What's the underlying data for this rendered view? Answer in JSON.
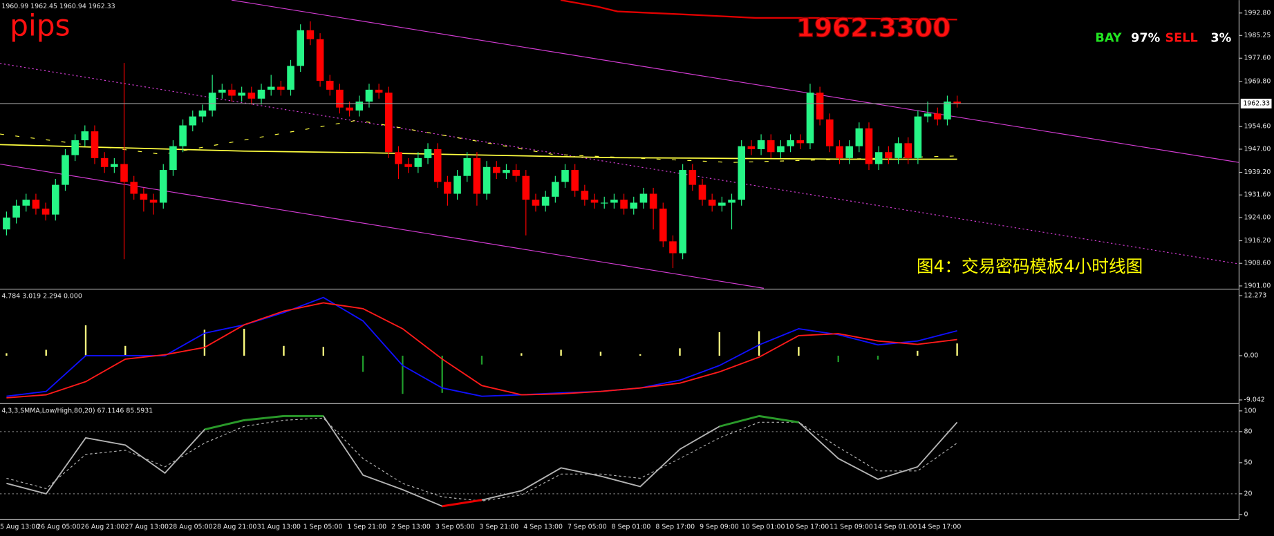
{
  "chart_data": [
    {
      "type": "candlestick",
      "header": "1960.99 1962.45 1960.94 1962.33",
      "annotations": [
        "pips",
        "1962.3300",
        "图4：交易密码模板4小时线图"
      ],
      "signal": {
        "labels": [
          "BAY",
          "SELL"
        ],
        "values": [
          97,
          3
        ],
        "value_labels": [
          "97%",
          "3%"
        ]
      },
      "last": {
        "value": 1962.33,
        "label": "1962.33"
      },
      "up_color": "#26f586",
      "down_color": "#ff0000",
      "ylim": [
        1900.2,
        1996.6
      ],
      "yticks": [
        {
          "value": 1992.8,
          "label": "1992.80"
        },
        1985.25,
        {
          "value": 1977.6,
          "label": "1977.60"
        },
        {
          "value": 1969.8,
          "label": "1969.80"
        },
        {
          "value": 1954.6,
          "label": "1954.60"
        },
        {
          "value": 1947,
          "label": "1947.00"
        },
        {
          "value": 1939.2,
          "label": "1939.20"
        },
        {
          "value": 1931.6,
          "label": "1931.60"
        },
        {
          "value": 1924,
          "label": "1924.00"
        },
        {
          "value": 1916.2,
          "label": "1916.20"
        },
        {
          "value": 1908.6,
          "label": "1908.60"
        },
        {
          "value": 1901,
          "label": "1901.00"
        }
      ],
      "x_labels": [
        "5 Aug 13:00",
        "26 Aug 05:00",
        "26 Aug 21:00",
        "27 Aug 13:00",
        "28 Aug 05:00",
        "28 Aug 21:00",
        "31 Aug 13:00",
        "1 Sep 05:00",
        "1 Sep 21:00",
        "2 Sep 13:00",
        "3 Sep 05:00",
        "3 Sep 21:00",
        "4 Sep 13:00",
        "7 Sep 05:00",
        "8 Sep 01:00",
        "8 Sep 17:00",
        "9 Sep 09:00",
        "10 Sep 01:00",
        "10 Sep 17:00",
        "11 Sep 09:00",
        "14 Sep 01:00",
        "14 Sep 17:00"
      ],
      "open": [
        1920,
        1924,
        1928,
        1930,
        1927,
        1925,
        1935,
        1945,
        1950,
        1953,
        1944,
        1941,
        1942,
        1936,
        1932,
        1930,
        1929,
        1940,
        1948,
        1955,
        1958,
        1960,
        1966,
        1967,
        1965,
        1966,
        1964,
        1967,
        1968,
        1967,
        1975,
        1987,
        1984,
        1970,
        1967,
        1961,
        1960,
        1963,
        1967,
        1966,
        1946,
        1942,
        1941,
        1944,
        1947,
        1936,
        1932,
        1938,
        1944,
        1932,
        1941,
        1939,
        1940,
        1938,
        1930,
        1928,
        1931,
        1936,
        1940,
        1933,
        1930,
        1929,
        1929,
        1930,
        1927,
        1929,
        1932,
        1927,
        1916,
        1912,
        1940,
        1935,
        1930,
        1928,
        1929,
        1930,
        1948,
        1947,
        1950,
        1946,
        1948,
        1950,
        1949,
        1966,
        1957,
        1948,
        1944,
        1948,
        1954,
        1942,
        1946,
        1944,
        1949,
        1944,
        1958,
        1959,
        1957,
        1963
      ],
      "high": [
        1926,
        1930,
        1932,
        1932,
        1929,
        1937,
        1947,
        1952,
        1955,
        1955,
        1946,
        1944,
        1976,
        1938,
        1934,
        1932,
        1942,
        1950,
        1957,
        1960,
        1962,
        1972,
        1969,
        1969,
        1968,
        1968,
        1969,
        1972,
        1970,
        1977,
        1989,
        1990,
        1986,
        1972,
        1969,
        1963,
        1965,
        1969,
        1969,
        1968,
        1948,
        1944,
        1946,
        1949,
        1949,
        1938,
        1940,
        1946,
        1946,
        1943,
        1943,
        1942,
        1942,
        1940,
        1932,
        1933,
        1938,
        1942,
        1942,
        1935,
        1932,
        1931,
        1932,
        1932,
        1931,
        1934,
        1934,
        1929,
        1918,
        1942,
        1942,
        1937,
        1932,
        1931,
        1932,
        1950,
        1950,
        1952,
        1952,
        1950,
        1952,
        1952,
        1969,
        1968,
        1959,
        1950,
        1950,
        1956,
        1956,
        1948,
        1948,
        1951,
        1951,
        1960,
        1963,
        1961,
        1965,
        1965
      ],
      "low": [
        1918,
        1922,
        1926,
        1925,
        1923,
        1923,
        1933,
        1943,
        1948,
        1942,
        1939,
        1939,
        1910,
        1930,
        1926,
        1925,
        1927,
        1938,
        1946,
        1953,
        1956,
        1958,
        1964,
        1963,
        1963,
        1962,
        1962,
        1965,
        1965,
        1965,
        1973,
        1982,
        1968,
        1965,
        1959,
        1958,
        1958,
        1961,
        1964,
        1944,
        1937,
        1939,
        1939,
        1942,
        1934,
        1928,
        1930,
        1936,
        1928,
        1930,
        1937,
        1937,
        1936,
        1918,
        1926,
        1926,
        1929,
        1934,
        1931,
        1928,
        1927,
        1927,
        1927,
        1925,
        1925,
        1927,
        1920,
        1914,
        1907,
        1910,
        1933,
        1928,
        1926,
        1926,
        1920,
        1928,
        1945,
        1945,
        1944,
        1944,
        1946,
        1947,
        1947,
        1955,
        1946,
        1942,
        1942,
        1946,
        1940,
        1940,
        1942,
        1942,
        1942,
        1942,
        1956,
        1955,
        1955,
        1961
      ],
      "close": [
        1924,
        1928,
        1930,
        1927,
        1925,
        1935,
        1945,
        1950,
        1953,
        1944,
        1941,
        1942,
        1936,
        1932,
        1930,
        1929,
        1940,
        1948,
        1955,
        1958,
        1960,
        1966,
        1967,
        1965,
        1966,
        1964,
        1967,
        1968,
        1967,
        1975,
        1987,
        1984,
        1970,
        1967,
        1961,
        1960,
        1963,
        1967,
        1966,
        1946,
        1942,
        1941,
        1944,
        1947,
        1936,
        1932,
        1938,
        1944,
        1932,
        1941,
        1939,
        1940,
        1938,
        1930,
        1928,
        1931,
        1936,
        1940,
        1933,
        1930,
        1929,
        1929,
        1930,
        1927,
        1929,
        1932,
        1927,
        1916,
        1912,
        1940,
        1935,
        1930,
        1928,
        1929,
        1930,
        1948,
        1947,
        1950,
        1946,
        1948,
        1950,
        1949,
        1966,
        1957,
        1948,
        1944,
        1948,
        1954,
        1942,
        1946,
        1944,
        1949,
        1944,
        1958,
        1959,
        1957,
        1963,
        1962.33
      ]
    },
    {
      "type": "macd",
      "header": "4.784 3.019 2.294 0.000",
      "ylim": [
        -9.62,
        13.27
      ],
      "yticks": [
        12.273,
        {
          "value": 0,
          "label": "0.00"
        },
        -9.042
      ],
      "histogram": {
        "values": [
          0.5,
          1.2,
          6.2,
          2,
          0.3,
          5.3,
          5.5,
          2,
          1.8,
          -3.3,
          -7.8,
          -7.6,
          -1.8,
          0.5,
          1.2,
          0.8,
          0.3,
          1.5,
          4.8,
          5,
          1.8,
          -1.3,
          -0.8,
          1,
          2.5
        ],
        "color": "#ffff80",
        "negative_color": "#1f9a2a"
      },
      "series": [
        {
          "color": "#1010ff",
          "values": [
            -8.3,
            -7.3,
            0,
            0,
            0,
            4.6,
            6.3,
            8.8,
            11.9,
            7.1,
            -2,
            -6.6,
            -8.3,
            -8,
            -7.6,
            -7.3,
            -6.6,
            -5,
            -2,
            2.2,
            5.5,
            4.3,
            2.2,
            3,
            5.1
          ]
        },
        {
          "color": "#ff1a1a",
          "values": [
            -8.6,
            -8,
            -5.3,
            -0.7,
            0.2,
            1.7,
            6.3,
            9.1,
            10.8,
            9.6,
            5.5,
            -0.7,
            -6.1,
            -8,
            -7.8,
            -7.3,
            -6.6,
            -5.6,
            -3.3,
            -0.3,
            4.1,
            4.5,
            3,
            2.3,
            3.3
          ]
        }
      ]
    },
    {
      "type": "stochastic",
      "header": "4,3,3,SMMA,Low/High,80,20) 67.1146 85.5931",
      "ylim": [
        -5,
        104.7
      ],
      "yticks": [
        100,
        80,
        50,
        20,
        0
      ],
      "levels": [
        80,
        20
      ],
      "upper_color": "#2a9a2a",
      "lower_color": "#e60000",
      "series": [
        {
          "color": "#b4b4b4",
          "values": [
            30,
            20,
            74,
            67,
            40,
            82,
            91,
            95,
            95,
            38,
            24,
            8,
            14,
            23,
            45,
            37,
            27,
            63,
            85,
            95,
            89,
            54,
            34,
            46,
            89
          ]
        },
        {
          "color": "#b4b4b4",
          "dashed": true,
          "values": [
            35,
            25,
            58,
            62,
            46,
            69,
            85,
            91,
            93,
            54,
            30,
            17,
            13,
            19,
            39,
            39,
            35,
            54,
            74,
            89,
            89,
            65,
            42,
            42,
            69
          ]
        }
      ]
    }
  ]
}
